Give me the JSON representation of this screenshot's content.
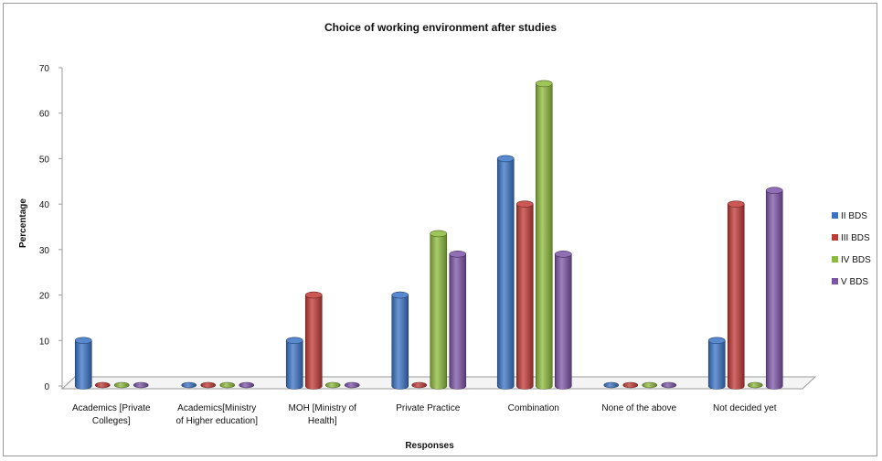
{
  "chart_data": {
    "type": "bar",
    "title": "Choice of working environment after studies",
    "xlabel": "Responses",
    "ylabel": "Percentage",
    "ylim": [
      0,
      70
    ],
    "yticks": [
      0,
      10,
      20,
      30,
      40,
      50,
      60,
      70
    ],
    "grid": false,
    "legend_position": "right",
    "categories": [
      [
        "Academics [Private",
        "Colleges]"
      ],
      [
        "Academics[Ministry",
        "of Higher education]"
      ],
      [
        "MOH [Ministry of",
        "Health]"
      ],
      [
        "Private Practice"
      ],
      [
        "Combination"
      ],
      [
        "None of  the  above"
      ],
      [
        "Not  decided  yet"
      ]
    ],
    "series": [
      {
        "name": "II BDS",
        "color": "#3b74c6",
        "values": [
          10,
          0,
          10,
          20,
          50,
          0,
          10
        ]
      },
      {
        "name": "III BDS",
        "color": "#c23a37",
        "values": [
          0,
          0,
          20,
          0,
          40,
          0,
          40
        ]
      },
      {
        "name": "IV BDS",
        "color": "#8dbb3c",
        "values": [
          0,
          0,
          0,
          33.5,
          66.5,
          0,
          0
        ]
      },
      {
        "name": "V BDS",
        "color": "#7d55a7",
        "values": [
          0,
          0,
          0,
          29,
          29,
          0,
          43
        ]
      }
    ]
  }
}
